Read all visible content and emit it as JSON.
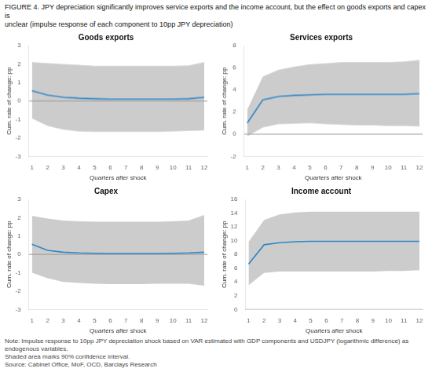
{
  "title": "FIGURE 4.  JPY depreciation significantly improves service exports and the income account, but the effect on goods exports and capex is\nunclear (impulse response of each component to 10pp JPY depreciation)",
  "annotations": [
    "Note: Impulse response to 10pp JPY depreciation shock based on VAR estimated with GDP components and USDJPY (logarithmic difference) as endogenous variables.\nShaded area marks 90% confidence interval.\nSource: Cabinet Office, MoF, OCD, Barclays Research"
  ],
  "chart_data": [
    {
      "type": "line",
      "title": "Goods exports",
      "x_label": "Quarters after shock",
      "y_label": "Cum. rate of change: pp",
      "x": [
        1,
        2,
        3,
        4,
        5,
        6,
        7,
        8,
        9,
        10,
        11,
        12
      ],
      "xlim": [
        0.8,
        12.2
      ],
      "xticks": [
        1,
        2,
        3,
        4,
        5,
        6,
        7,
        8,
        9,
        10,
        11,
        12
      ],
      "ylim": [
        -3,
        3
      ],
      "yticks": [
        -3,
        -2,
        -1,
        0,
        1,
        2,
        3
      ],
      "grid": false,
      "zero_line": {
        "value": 0,
        "color": "#999999"
      },
      "series": [
        {
          "type": "area",
          "color": "#cccccc",
          "upper": [
            2.1,
            2.05,
            2.0,
            1.95,
            1.9,
            1.9,
            1.9,
            1.9,
            1.9,
            1.9,
            1.92,
            2.1
          ],
          "lower": [
            -0.95,
            -1.35,
            -1.55,
            -1.65,
            -1.67,
            -1.67,
            -1.67,
            -1.67,
            -1.67,
            -1.65,
            -1.62,
            -1.6
          ]
        },
        {
          "type": "line",
          "color": "#2e86c8",
          "values": [
            0.55,
            0.32,
            0.2,
            0.15,
            0.12,
            0.1,
            0.1,
            0.1,
            0.1,
            0.1,
            0.12,
            0.2
          ]
        }
      ]
    },
    {
      "type": "line",
      "title": "Services exports",
      "x_label": "Quarters after shock",
      "y_label": "Cum. rate of change: pp",
      "x": [
        1,
        2,
        3,
        4,
        5,
        6,
        7,
        8,
        9,
        10,
        11,
        12
      ],
      "xlim": [
        0.8,
        12.2
      ],
      "xticks": [
        1,
        2,
        3,
        4,
        5,
        6,
        7,
        8,
        9,
        10,
        11,
        12
      ],
      "ylim": [
        -2,
        8
      ],
      "yticks": [
        -2,
        0,
        2,
        4,
        6,
        8
      ],
      "grid": false,
      "zero_line": {
        "value": 0,
        "color": "#999999"
      },
      "series": [
        {
          "type": "area",
          "color": "#cccccc",
          "upper": [
            2.2,
            5.2,
            5.8,
            6.1,
            6.3,
            6.4,
            6.5,
            6.5,
            6.5,
            6.5,
            6.55,
            6.7
          ],
          "lower": [
            -0.2,
            0.6,
            0.9,
            0.95,
            1.0,
            0.9,
            0.85,
            0.8,
            0.8,
            0.75,
            0.75,
            0.7
          ]
        },
        {
          "type": "line",
          "color": "#2e86c8",
          "values": [
            1.0,
            3.1,
            3.4,
            3.5,
            3.55,
            3.6,
            3.6,
            3.6,
            3.6,
            3.6,
            3.6,
            3.65
          ]
        }
      ]
    },
    {
      "type": "line",
      "title": "Capex",
      "x_label": "Quarters after shock",
      "y_label": "Cum. rate of change: pp",
      "x": [
        1,
        2,
        3,
        4,
        5,
        6,
        7,
        8,
        9,
        10,
        11,
        12
      ],
      "xlim": [
        0.8,
        12.2
      ],
      "xticks": [
        1,
        2,
        3,
        4,
        5,
        6,
        7,
        8,
        9,
        10,
        11,
        12
      ],
      "ylim": [
        -3,
        3
      ],
      "yticks": [
        -3,
        -2,
        -1,
        0,
        1,
        2,
        3
      ],
      "grid": false,
      "zero_line": {
        "value": 0,
        "color": "#999999"
      },
      "series": [
        {
          "type": "area",
          "color": "#cccccc",
          "upper": [
            2.1,
            1.95,
            1.85,
            1.8,
            1.78,
            1.78,
            1.78,
            1.78,
            1.78,
            1.8,
            1.85,
            2.15
          ],
          "lower": [
            -1.0,
            -1.3,
            -1.5,
            -1.55,
            -1.6,
            -1.62,
            -1.62,
            -1.62,
            -1.6,
            -1.6,
            -1.6,
            -1.7
          ]
        },
        {
          "type": "line",
          "color": "#2e86c8",
          "values": [
            0.55,
            0.22,
            0.12,
            0.08,
            0.06,
            0.05,
            0.05,
            0.05,
            0.05,
            0.06,
            0.08,
            0.12
          ]
        }
      ]
    },
    {
      "type": "line",
      "title": "Income account",
      "x_label": "Quarters after shock",
      "y_label": "Cum. rate of change: pp",
      "x": [
        1,
        2,
        3,
        4,
        5,
        6,
        7,
        8,
        9,
        10,
        11,
        12
      ],
      "xlim": [
        0.8,
        12.2
      ],
      "xticks": [
        1,
        2,
        3,
        4,
        5,
        6,
        7,
        8,
        9,
        10,
        11,
        12
      ],
      "ylim": [
        0,
        16
      ],
      "yticks": [
        0,
        2,
        4,
        6,
        8,
        10,
        12,
        14,
        16
      ],
      "grid": false,
      "zero_line": {
        "value": 0,
        "color": "#999999"
      },
      "series": [
        {
          "type": "area",
          "color": "#cccccc",
          "upper": [
            9.8,
            13.0,
            13.8,
            14.1,
            14.2,
            14.2,
            14.2,
            14.2,
            14.2,
            14.2,
            14.2,
            14.2
          ],
          "lower": [
            3.5,
            5.3,
            5.5,
            5.5,
            5.5,
            5.5,
            5.5,
            5.5,
            5.5,
            5.6,
            5.6,
            5.7
          ]
        },
        {
          "type": "line",
          "color": "#2e86c8",
          "values": [
            6.6,
            9.4,
            9.7,
            9.85,
            9.9,
            9.9,
            9.9,
            9.9,
            9.9,
            9.9,
            9.9,
            9.9
          ]
        }
      ]
    }
  ]
}
